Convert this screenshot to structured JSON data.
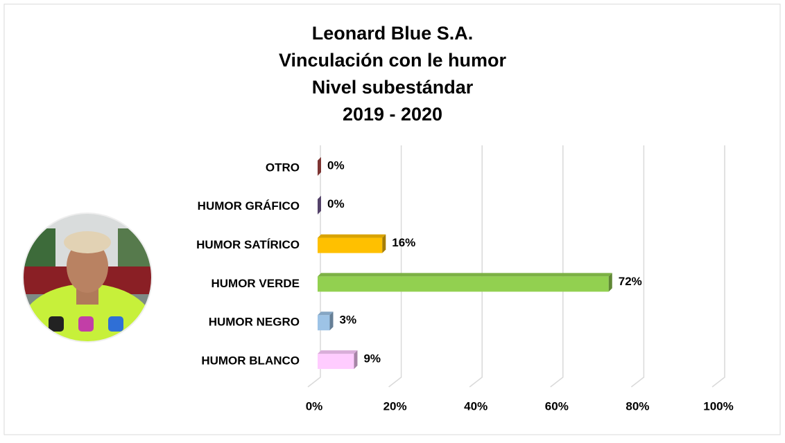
{
  "chart_data": {
    "type": "bar3d",
    "title": [
      "Leonard Blue S.A.",
      "Vinculación con le humor",
      "Nivel subestándar",
      "2019 - 2020"
    ],
    "categories": [
      "OTRO",
      "HUMOR GRÁFICO",
      "HUMOR SATÍRICO",
      "HUMOR VERDE",
      "HUMOR NEGRO",
      "HUMOR BLANCO"
    ],
    "values": [
      0,
      0,
      16,
      72,
      3,
      9
    ],
    "value_labels": [
      "0%",
      "0%",
      "16%",
      "72%",
      "3%",
      "9%"
    ],
    "colors": [
      "#c0504d",
      "#8064a2",
      "#ffc000",
      "#92d050",
      "#9dc3e6",
      "#ffccff"
    ],
    "xlim": [
      0,
      100
    ],
    "xticks": [
      {
        "value": 0,
        "label": "0%"
      },
      {
        "value": 20,
        "label": "20%"
      },
      {
        "value": 40,
        "label": "40%"
      },
      {
        "value": 60,
        "label": "60%"
      },
      {
        "value": 80,
        "label": "80%"
      },
      {
        "value": 100,
        "label": "100%"
      }
    ],
    "grid": true
  }
}
